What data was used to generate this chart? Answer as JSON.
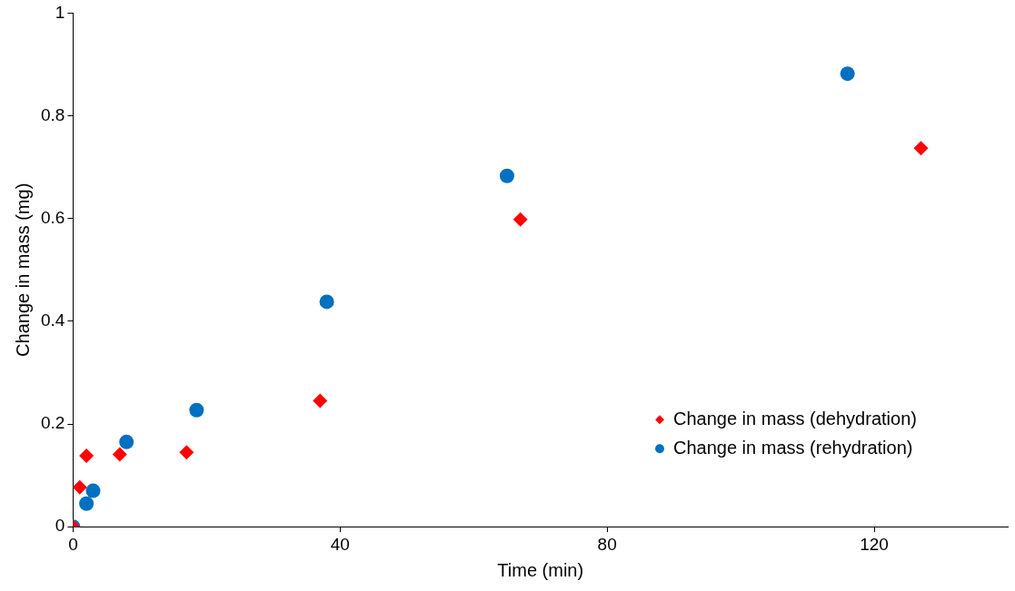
{
  "chart_data": {
    "type": "scatter",
    "xlabel": "Time (min)",
    "ylabel": "Change in mass (mg)",
    "xlim": [
      0,
      140
    ],
    "xticks": [
      0,
      40,
      80,
      120
    ],
    "ylim": [
      0,
      1
    ],
    "yticks": [
      0,
      0.2,
      0.4,
      0.6,
      0.8,
      1
    ],
    "grid": false,
    "legend": "bottom right",
    "series": [
      {
        "name": "Change in mass (dehydration)",
        "color": "#ff0000",
        "marker": "diamond",
        "x": [
          0,
          1,
          2,
          7,
          17,
          37,
          67,
          127
        ],
        "values": [
          0,
          0.077,
          0.138,
          0.141,
          0.145,
          0.245,
          0.598,
          0.737
        ]
      },
      {
        "name": "Change in mass (rehydration)",
        "color": "#0070c0",
        "marker": "circle",
        "x": [
          0,
          2,
          3,
          8,
          18.5,
          38,
          65,
          116
        ],
        "values": [
          0,
          0.045,
          0.07,
          0.165,
          0.227,
          0.438,
          0.683,
          0.882
        ]
      }
    ]
  }
}
